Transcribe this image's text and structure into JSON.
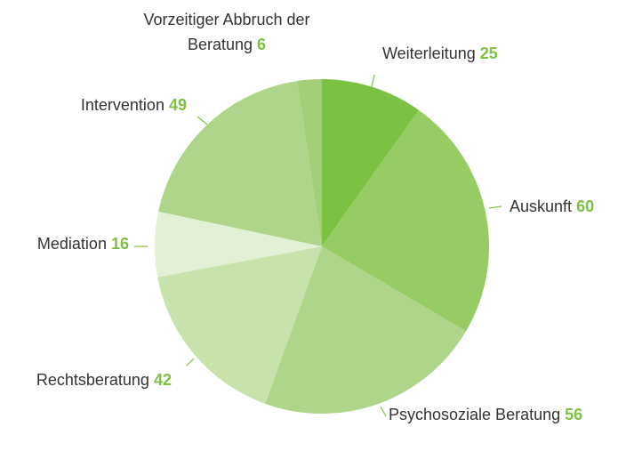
{
  "chart_data": {
    "type": "pie",
    "categories": [
      "Weiterleitung",
      "Auskunft",
      "Psychosoziale Beratung",
      "Rechtsberatung",
      "Mediation",
      "Intervention",
      "Vorzeitiger Abbruch der Beratung"
    ],
    "values": [
      25,
      60,
      56,
      42,
      16,
      49,
      6
    ],
    "colors": [
      "#7bc142",
      "#97cc64",
      "#afd58a",
      "#c7e2ab",
      "#e2f0d5",
      "#afd58a",
      "#a3cf78"
    ],
    "value_color": "#7bc142"
  }
}
